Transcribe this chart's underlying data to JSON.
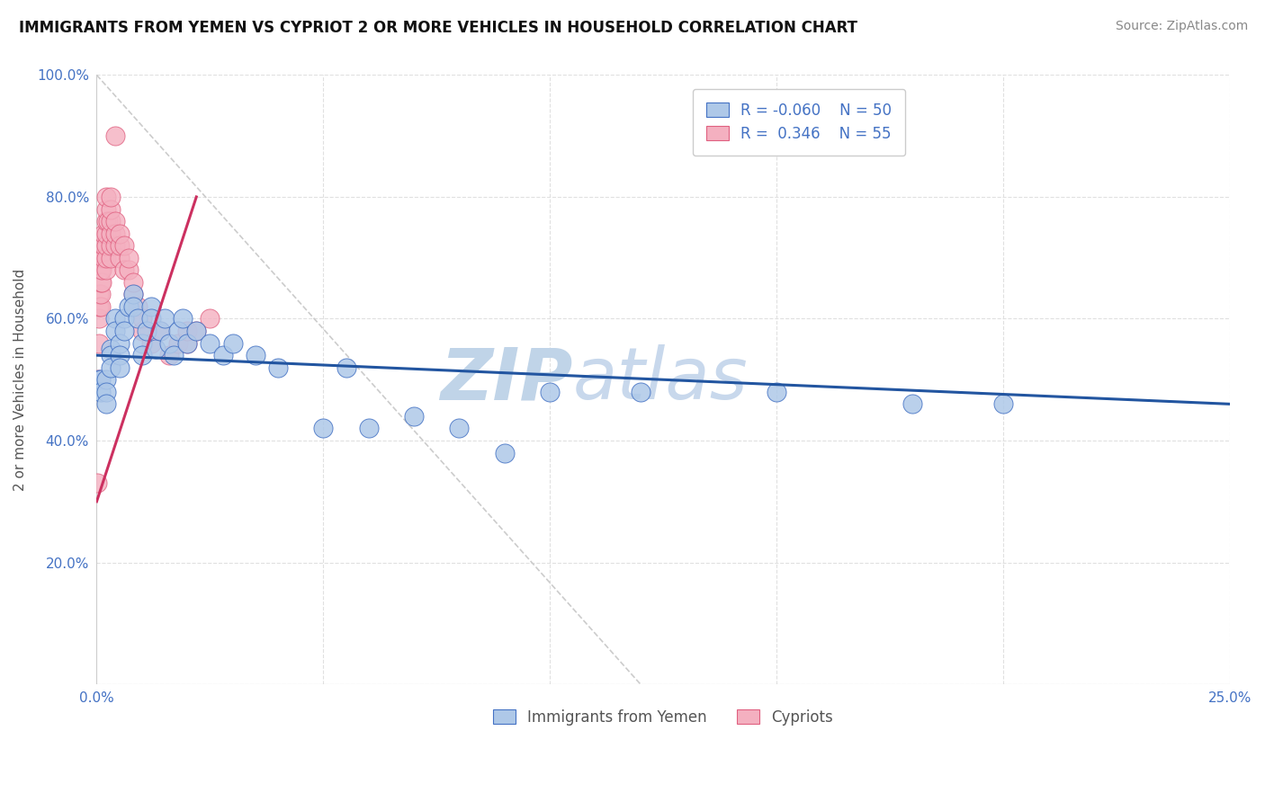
{
  "title": "IMMIGRANTS FROM YEMEN VS CYPRIOT 2 OR MORE VEHICLES IN HOUSEHOLD CORRELATION CHART",
  "source": "Source: ZipAtlas.com",
  "ylabel": "2 or more Vehicles in Household",
  "legend_blue": "Immigrants from Yemen",
  "legend_pink": "Cypriots",
  "R_blue": -0.06,
  "N_blue": 50,
  "R_pink": 0.346,
  "N_pink": 55,
  "blue_scatter_x": [
    0.0005,
    0.001,
    0.001,
    0.002,
    0.002,
    0.002,
    0.003,
    0.003,
    0.003,
    0.004,
    0.004,
    0.005,
    0.005,
    0.005,
    0.006,
    0.006,
    0.007,
    0.008,
    0.008,
    0.009,
    0.01,
    0.01,
    0.011,
    0.012,
    0.012,
    0.013,
    0.014,
    0.015,
    0.016,
    0.017,
    0.018,
    0.019,
    0.02,
    0.022,
    0.025,
    0.028,
    0.03,
    0.035,
    0.04,
    0.05,
    0.055,
    0.06,
    0.07,
    0.08,
    0.09,
    0.1,
    0.12,
    0.15,
    0.18,
    0.2
  ],
  "blue_scatter_y": [
    0.5,
    0.5,
    0.48,
    0.5,
    0.48,
    0.46,
    0.55,
    0.54,
    0.52,
    0.6,
    0.58,
    0.56,
    0.54,
    0.52,
    0.6,
    0.58,
    0.62,
    0.64,
    0.62,
    0.6,
    0.56,
    0.54,
    0.58,
    0.62,
    0.6,
    0.55,
    0.58,
    0.6,
    0.56,
    0.54,
    0.58,
    0.6,
    0.56,
    0.58,
    0.56,
    0.54,
    0.56,
    0.54,
    0.52,
    0.42,
    0.52,
    0.42,
    0.44,
    0.42,
    0.38,
    0.48,
    0.48,
    0.48,
    0.46,
    0.46
  ],
  "pink_scatter_x": [
    0.0002,
    0.0003,
    0.0005,
    0.0005,
    0.0005,
    0.0005,
    0.0008,
    0.001,
    0.001,
    0.001,
    0.001,
    0.001,
    0.0012,
    0.0012,
    0.0015,
    0.0015,
    0.0015,
    0.002,
    0.002,
    0.002,
    0.002,
    0.002,
    0.002,
    0.002,
    0.0025,
    0.003,
    0.003,
    0.003,
    0.003,
    0.003,
    0.003,
    0.004,
    0.004,
    0.004,
    0.004,
    0.005,
    0.005,
    0.005,
    0.006,
    0.006,
    0.007,
    0.007,
    0.008,
    0.008,
    0.009,
    0.01,
    0.01,
    0.012,
    0.014,
    0.016,
    0.018,
    0.02,
    0.02,
    0.022,
    0.025
  ],
  "pink_scatter_y": [
    0.33,
    0.5,
    0.56,
    0.6,
    0.62,
    0.64,
    0.68,
    0.62,
    0.64,
    0.66,
    0.68,
    0.7,
    0.66,
    0.68,
    0.7,
    0.72,
    0.74,
    0.68,
    0.7,
    0.72,
    0.74,
    0.76,
    0.78,
    0.8,
    0.76,
    0.7,
    0.72,
    0.74,
    0.76,
    0.78,
    0.8,
    0.72,
    0.74,
    0.76,
    0.9,
    0.7,
    0.72,
    0.74,
    0.68,
    0.72,
    0.68,
    0.7,
    0.64,
    0.66,
    0.62,
    0.58,
    0.6,
    0.56,
    0.58,
    0.54,
    0.56,
    0.56,
    0.58,
    0.58,
    0.6
  ],
  "blue_dot_color": "#aec8e8",
  "blue_edge_color": "#4472c4",
  "pink_dot_color": "#f4b0c0",
  "pink_edge_color": "#e06080",
  "blue_line_color": "#2255a0",
  "pink_line_color": "#cc3060",
  "diag_color": "#cccccc",
  "grid_color": "#e0e0e0",
  "bg_color": "#ffffff",
  "wm_color_zip": "#c0d4e8",
  "wm_color_atlas": "#c8d8ec",
  "title_color": "#111111",
  "tick_color": "#4472c4",
  "source_color": "#888888",
  "ylabel_color": "#555555",
  "legend_text_color": "#4472c4",
  "bottom_legend_color": "#555555"
}
